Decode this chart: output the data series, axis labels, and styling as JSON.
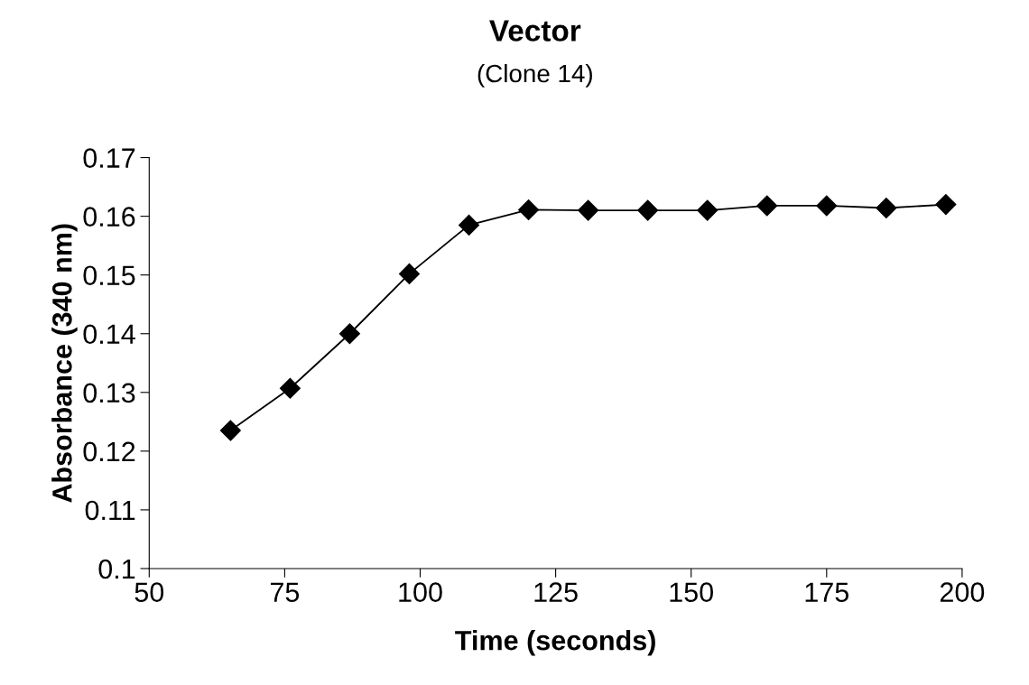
{
  "chart_data": {
    "type": "line",
    "title": "Vector",
    "subtitle": "(Clone 14)",
    "xlabel": "Time (seconds)",
    "ylabel": "Absorbance (340 nm)",
    "x": [
      65,
      76,
      87,
      98,
      109,
      120,
      131,
      142,
      153,
      164,
      175,
      186,
      197
    ],
    "series": [
      {
        "color": "#000000",
        "values": [
          0.1235,
          0.1307,
          0.14,
          0.1502,
          0.1585,
          0.1611,
          0.161,
          0.161,
          0.161,
          0.1618,
          0.1618,
          0.1614,
          0.162
        ]
      }
    ],
    "xlim": [
      50,
      200
    ],
    "xticks": [
      50,
      75,
      100,
      125,
      150,
      175,
      200
    ],
    "ylim": [
      0.1,
      0.17
    ],
    "yticks": [
      {
        "value": 0.1,
        "label": "0.1"
      },
      {
        "value": 0.11,
        "label": "0.11"
      },
      {
        "value": 0.12,
        "label": "0.12"
      },
      {
        "value": 0.13,
        "label": "0.13"
      },
      {
        "value": 0.14,
        "label": "0.14"
      },
      {
        "value": 0.15,
        "label": "0.15"
      },
      {
        "value": 0.16,
        "label": "0.16"
      },
      {
        "value": 0.17,
        "label": "0.17"
      }
    ],
    "marker": "diamond",
    "line_style": "solid",
    "grid": false,
    "legend": false
  }
}
